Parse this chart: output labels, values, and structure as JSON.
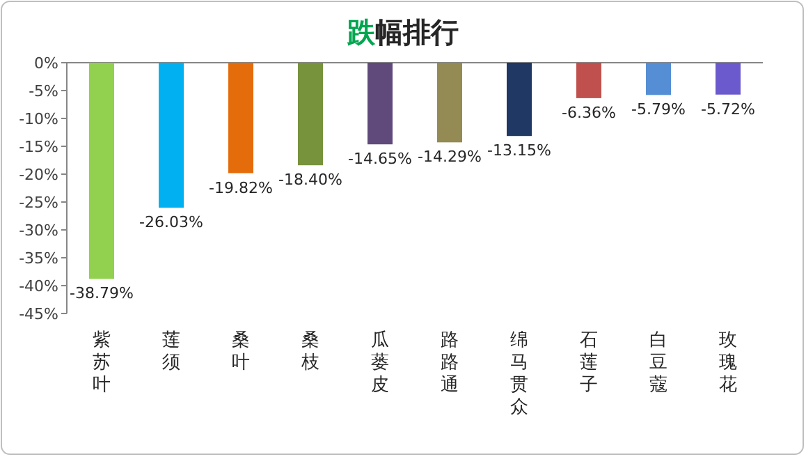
{
  "chart_data": {
    "type": "bar",
    "title": "跌幅排行",
    "categories": [
      "紫苏叶",
      "莲须",
      "桑叶",
      "桑枝",
      "瓜蒌皮",
      "路路通",
      "绵马贯众",
      "石莲子",
      "白豆蔻",
      "玫瑰花"
    ],
    "values": [
      -38.79,
      -26.03,
      -19.82,
      -18.4,
      -14.65,
      -14.29,
      -13.15,
      -6.36,
      -5.79,
      -5.72
    ],
    "value_labels": [
      "-38.79%",
      "-26.03%",
      "-19.82%",
      "-18.40%",
      "-14.65%",
      "-14.29%",
      "-13.15%",
      "-6.36%",
      "-5.79%",
      "-5.72%"
    ],
    "colors": [
      "#92d050",
      "#00b0f0",
      "#e46c0a",
      "#77933c",
      "#604a7b",
      "#948a54",
      "#1f3864",
      "#c0504d",
      "#558ed5",
      "#6a5acd"
    ],
    "ylim": [
      -45,
      0
    ],
    "yticks": [
      {
        "value": 0,
        "label": "0%"
      },
      {
        "value": -5,
        "label": "-5%"
      },
      {
        "value": -10,
        "label": "-10%"
      },
      {
        "value": -15,
        "label": "-15%"
      },
      {
        "value": -20,
        "label": "-20%"
      },
      {
        "value": -25,
        "label": "-25%"
      },
      {
        "value": -30,
        "label": "-30%"
      },
      {
        "value": -35,
        "label": "-35%"
      },
      {
        "value": -40,
        "label": "-40%"
      },
      {
        "value": -45,
        "label": "-45%"
      }
    ],
    "grid": false
  }
}
